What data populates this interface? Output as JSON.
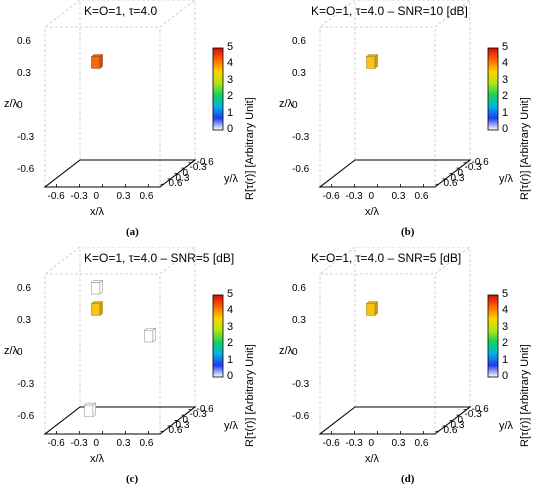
{
  "chart_data": [
    {
      "type": "scatter",
      "subtitle": "(a)",
      "title": "K=O=1, τ=4.0",
      "xlabel": "x/λ",
      "ylabel": "y/λ",
      "zlabel": "z/λ",
      "colorbar_label": "R[τ(r)] [Arbitrary Unit]",
      "colorbar_ticks": [
        "0",
        "1",
        "2",
        "3",
        "4",
        "5"
      ],
      "xticks": [
        "-0.6",
        "-0.3",
        "0",
        "0.3",
        "0.6"
      ],
      "yticks": [
        "-0.6",
        "-0.3",
        "0",
        "0.3",
        "0.6"
      ],
      "zticks": [
        "0.6",
        "0.3",
        "0",
        "-0.3",
        "-0.6"
      ],
      "points": [
        {
          "x": -0.3,
          "y": 0.0,
          "z": 0.3,
          "value": 4.0,
          "color": "#f26a10"
        }
      ]
    },
    {
      "type": "scatter",
      "subtitle": "(b)",
      "title": "K=O=1, τ=4.0 – SNR=10 [dB]",
      "xlabel": "x/λ",
      "ylabel": "y/λ",
      "zlabel": "z/λ",
      "colorbar_label": "R[τ(r)] [Arbitrary Unit]",
      "colorbar_ticks": [
        "0",
        "1",
        "2",
        "3",
        "4",
        "5"
      ],
      "xticks": [
        "-0.6",
        "-0.3",
        "0",
        "0.3",
        "0.6"
      ],
      "yticks": [
        "-0.6",
        "-0.3",
        "0",
        "0.3",
        "0.6"
      ],
      "zticks": [
        "0.6",
        "0.3",
        "0",
        "-0.3",
        "-0.6"
      ],
      "points": [
        {
          "x": -0.3,
          "y": 0.0,
          "z": 0.3,
          "value": 3.4,
          "color": "#f8c414"
        }
      ]
    },
    {
      "type": "scatter",
      "subtitle": "(c)",
      "title": "K=O=1, τ=4.0 – SNR=5 [dB]",
      "xlabel": "x/λ",
      "ylabel": "y/λ",
      "zlabel": "z/λ",
      "colorbar_label": "R[τ(r)] [Arbitrary Unit]",
      "colorbar_ticks": [
        "0",
        "1",
        "2",
        "3",
        "4",
        "5"
      ],
      "xticks": [
        "-0.6",
        "-0.3",
        "0",
        "0.3",
        "0.6"
      ],
      "yticks": [
        "-0.6",
        "-0.3",
        "0",
        "0.3",
        "0.6"
      ],
      "zticks": [
        "0.6",
        "0.3",
        "0",
        "-0.3",
        "-0.6"
      ],
      "points": [
        {
          "x": -0.3,
          "y": 0.0,
          "z": 0.3,
          "value": 3.4,
          "color": "#f8c414"
        },
        {
          "x": -0.3,
          "y": 0.0,
          "z": 0.5,
          "value": 0.05,
          "color": "#ffffff"
        },
        {
          "x": 0.3,
          "y": 0.3,
          "z": 0.0,
          "value": 0.05,
          "color": "#ffffff"
        },
        {
          "x": -0.3,
          "y": -0.3,
          "z": -0.6,
          "value": 0.05,
          "color": "#ffffff"
        }
      ]
    },
    {
      "type": "scatter",
      "subtitle": "(d)",
      "title": "K=O=1, τ=4.0 – SNR=5 [dB]",
      "xlabel": "x/λ",
      "ylabel": "y/λ",
      "zlabel": "z/λ",
      "colorbar_label": "R[τ(r)] [Arbitrary Unit]",
      "colorbar_ticks": [
        "0",
        "1",
        "2",
        "3",
        "4",
        "5"
      ],
      "xticks": [
        "-0.6",
        "-0.3",
        "0",
        "0.3",
        "0.6"
      ],
      "yticks": [
        "-0.6",
        "-0.3",
        "0",
        "0.3",
        "0.6"
      ],
      "zticks": [
        "0.6",
        "0.3",
        "0",
        "-0.3",
        "-0.6"
      ],
      "points": [
        {
          "x": -0.3,
          "y": 0.0,
          "z": 0.3,
          "value": 3.4,
          "color": "#f8c414"
        }
      ]
    }
  ],
  "colormap": [
    "#ffffff",
    "#1e3cf0",
    "#00b4e6",
    "#14d25a",
    "#b4e614",
    "#ffd200",
    "#ff6400",
    "#dc0a0a"
  ]
}
